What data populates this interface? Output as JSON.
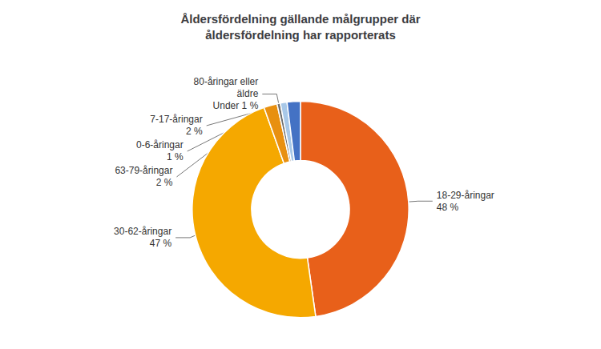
{
  "chart_data": {
    "type": "pie",
    "title": "Åldersfördelning gällande målgrupper där\nåldersfördelning har rapporterats",
    "categories": [
      "18-29-åringar",
      "30-62-åringar",
      "63-79-åringar",
      "80-åringar eller\näldre",
      "0-6-åringar",
      "7-17-åringar"
    ],
    "values": [
      48,
      47,
      2,
      0.5,
      1,
      2
    ],
    "value_labels": [
      "48 %",
      "47 %",
      "2 %",
      "Under 1 %",
      "1 %",
      "2 %"
    ],
    "colors": [
      "#E8601A",
      "#F5A800",
      "#E89010",
      "#707070",
      "#A8C8E8",
      "#4472C4"
    ],
    "data_labels": true
  }
}
